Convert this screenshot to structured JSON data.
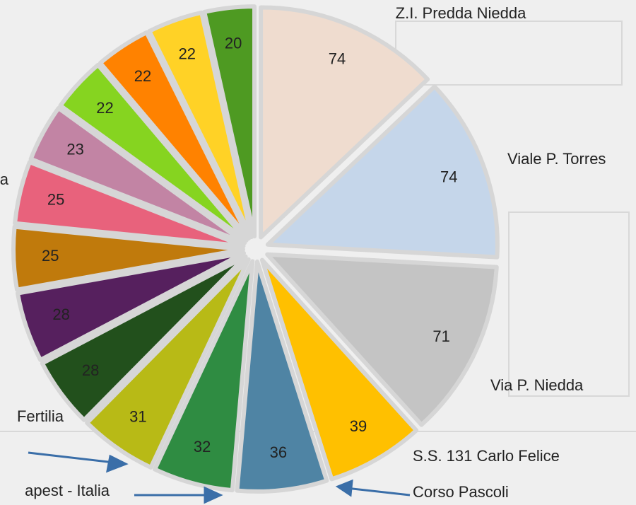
{
  "chart_data": {
    "type": "pie",
    "categories": [
      "Z.I. Predda Niedda",
      "Viale P. Torres",
      "Via P. Niedda",
      "S.S. 131 Carlo Felice",
      "Corso Pascoli",
      "apest - Italia",
      null,
      "Fertilia",
      null,
      null,
      "a",
      null,
      null,
      null,
      null,
      null
    ],
    "values": [
      74,
      74,
      71,
      39,
      36,
      32,
      31,
      28,
      28,
      25,
      25,
      23,
      22,
      22,
      22,
      20
    ],
    "colors": [
      "#efdccf",
      "#c5d6ea",
      "#c4c4c4",
      "#ffc000",
      "#4f84a4",
      "#2f8c42",
      "#b8ba16",
      "#22501c",
      "#56205e",
      "#c07a0c",
      "#e8627c",
      "#c284a4",
      "#86d420",
      "#ff8200",
      "#ffd226",
      "#4e9a22"
    ]
  }
}
